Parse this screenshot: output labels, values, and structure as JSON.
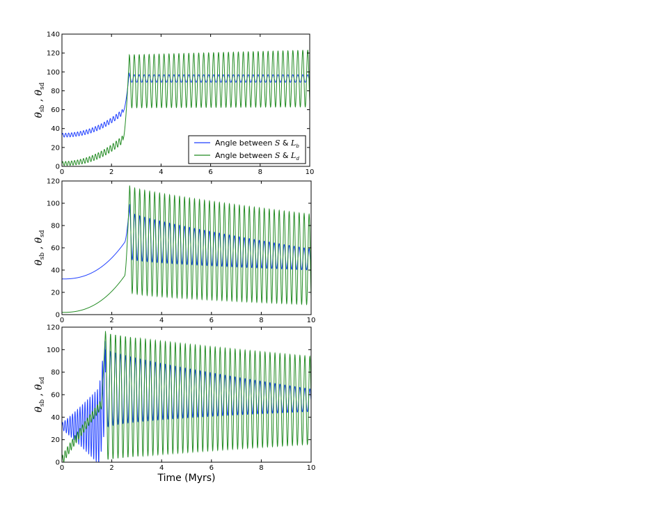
{
  "figure": {
    "xlabel": "Time (Myrs)",
    "ylabel_main": "θ",
    "ylabel_sub1": "sb",
    "ylabel_sep": " ,  ",
    "ylabel_sub2": "sd"
  },
  "chart_data": [
    {
      "type": "line",
      "xlim": [
        0,
        10
      ],
      "ylim": [
        0,
        140
      ],
      "xticks": [
        0,
        2,
        4,
        6,
        8,
        10
      ],
      "yticks": [
        0,
        20,
        40,
        60,
        80,
        100,
        120,
        140
      ],
      "grid": false,
      "legend_position": "lower-right",
      "series": [
        {
          "name": "Angle between S & L_b",
          "legend_text": "Angle between ",
          "legend_sym1": "S",
          "legend_amp": " & ",
          "legend_sym2": "L",
          "legend_sub": "b",
          "color": "#1f3fff",
          "model": {
            "type": "precess_jump",
            "start": 33,
            "end": 58,
            "amp0": 2,
            "amp1": 3,
            "tj": 2.72,
            "peak": 100,
            "mean_after": 93,
            "amp_after": 4,
            "period_before": 0.12,
            "period_after": 0.2
          }
        },
        {
          "name": "Angle between S & L_d",
          "legend_text": "Angle between ",
          "legend_sym1": "S",
          "legend_amp": " & ",
          "legend_sym2": "L",
          "legend_sub": "d",
          "color": "#228b22",
          "model": {
            "type": "precess_jump",
            "start": 3,
            "end": 29,
            "amp0": 2,
            "amp1": 4,
            "tj": 2.72,
            "peak": 119,
            "mean_after": 90,
            "amp_after": 28,
            "amp_after_end": 30,
            "period_before": 0.12,
            "period_after": 0.2
          }
        }
      ]
    },
    {
      "type": "line",
      "xlim": [
        0,
        10
      ],
      "ylim": [
        0,
        120
      ],
      "xticks": [
        0,
        2,
        4,
        6,
        8,
        10
      ],
      "yticks": [
        0,
        20,
        40,
        60,
        80,
        100,
        120
      ],
      "grid": false,
      "series": [
        {
          "color": "#1f3fff",
          "model": {
            "type": "grow_osc",
            "y0": 32,
            "y_pre": 65,
            "tj": 2.72,
            "peak": 100,
            "upper0": 92,
            "upper1": 59,
            "lower0": 50,
            "lower1": 40,
            "period": 0.2
          }
        },
        {
          "color": "#228b22",
          "model": {
            "type": "grow_osc",
            "y0": 2,
            "y_pre": 35,
            "tj": 2.72,
            "peak": 118,
            "upper0": 115,
            "upper1": 90,
            "lower0": 20,
            "lower1": 9,
            "period": 0.2
          }
        }
      ]
    },
    {
      "type": "line",
      "xlim": [
        0,
        10
      ],
      "ylim": [
        0,
        120
      ],
      "xticks": [
        0,
        2,
        4,
        6,
        8,
        10
      ],
      "yticks": [
        0,
        20,
        40,
        60,
        80,
        100,
        120
      ],
      "grid": false,
      "series": [
        {
          "color": "#1f3fff",
          "model": {
            "type": "early_osc",
            "center0": 32,
            "amp_early0": 3,
            "amp_early1": 40,
            "tj": 1.75,
            "peak": 108,
            "upper0": 100,
            "upper1": 65,
            "lower0": 30,
            "lower1": 45,
            "period_early": 0.1,
            "period": 0.2
          }
        },
        {
          "color": "#228b22",
          "model": {
            "type": "early_rise",
            "y0": 1,
            "y_pre": 52,
            "amp_early": 4,
            "tj": 1.75,
            "peak": 118,
            "upper0": 115,
            "upper1": 94,
            "lower0": 2,
            "lower1": 16,
            "period_early": 0.1,
            "period": 0.2
          }
        }
      ]
    }
  ]
}
